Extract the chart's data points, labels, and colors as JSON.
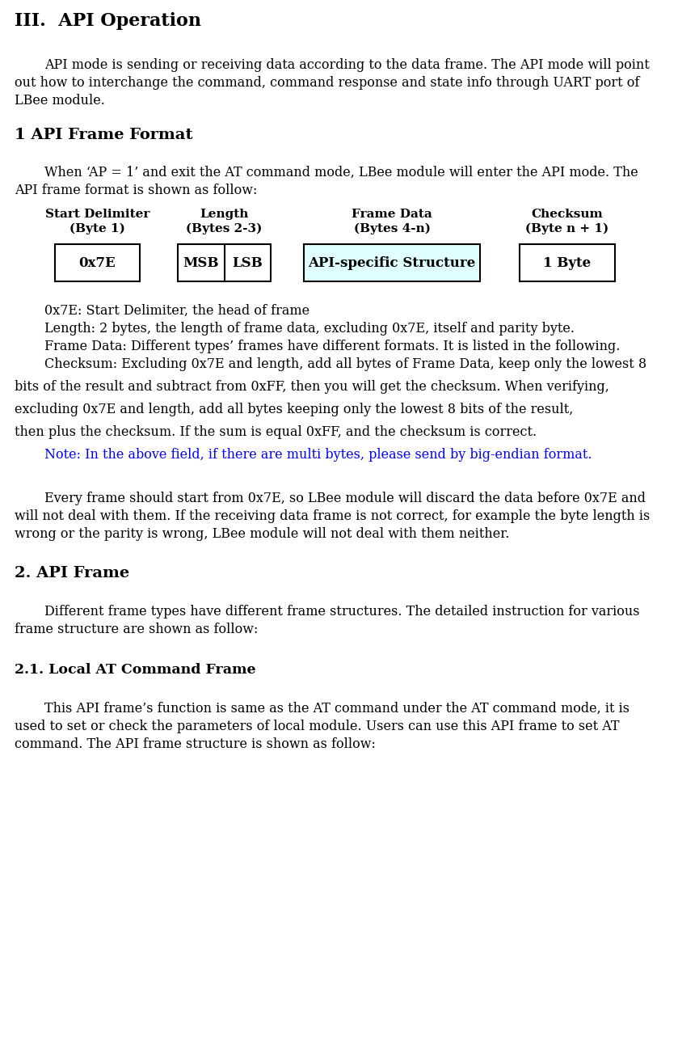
{
  "title": "III.  API Operation",
  "bg_color": "#ffffff",
  "text_color": "#000000",
  "blue_color": "#0000ff",
  "cyan_fill": "#e0ffff",
  "fig_width": 8.65,
  "fig_height": 13.16,
  "dpi": 100,
  "sections": {
    "intro_line1": "API mode is sending or receiving data according to the data frame. The API mode will point",
    "intro_line2": "out how to interchange the command, command response and state info through UART port of",
    "intro_line3": "LBee module.",
    "section1_title": "1 API Frame Format",
    "s1_intro1": "When ‘AP = 1’ and exit the AT command mode, LBee module will enter the API mode. The",
    "s1_intro2": "API frame format is shown as follow:",
    "box1_title": "Start Delimiter",
    "box1_sub": "(Byte 1)",
    "box1_content": "0x7E",
    "box2_title": "Length",
    "box2_sub": "(Bytes 2-3)",
    "box2_msb": "MSB",
    "box2_lsb": "LSB",
    "box3_title": "Frame Data",
    "box3_sub": "(Bytes 4-n)",
    "box3_content": "API-specific Structure",
    "box4_title": "Checksum",
    "box4_sub": "(Byte n + 1)",
    "box4_content": "1 Byte",
    "desc1": "0x7E: Start Delimiter, the head of frame",
    "desc2": "Length: 2 bytes, the length of frame data, excluding 0x7E, itself and parity byte.",
    "desc3": "Frame Data: Different types’ frames have different formats. It is listed in the following.",
    "desc4": "Checksum: Excluding 0x7E and length, add all bytes of Frame Data, keep only the lowest 8",
    "desc5": "bits of the result and subtract from 0xFF, then you will get the checksum. When verifying,",
    "desc6": "excluding 0x7E and length, add all bytes keeping only the lowest 8 bits of the result,",
    "desc7": "then plus the checksum. If the sum is equal 0xFF, and the checksum is correct.",
    "note": "Note: In the above field, if there are multi bytes, please send by big-endian format.",
    "p2_1": "Every frame should start from 0x7E, so LBee module will discard the data before 0x7E and",
    "p2_2": "will not deal with them. If the receiving data frame is not correct, for example the byte length is",
    "p2_3": "wrong or the parity is wrong, LBee module will not deal with them neither.",
    "section2_title": "2. API Frame",
    "s2_intro1": "Different frame types have different frame structures. The detailed instruction for various",
    "s2_intro2": "frame structure are shown as follow:",
    "section21_title": "2.1. Local AT Command Frame",
    "s21_intro1": "This API frame’s function is same as the AT command under the AT command mode, it is",
    "s21_intro2": "used to set or check the parameters of local module. Users can use this API frame to set AT",
    "s21_intro3": "command. The API frame structure is shown as follow:"
  }
}
